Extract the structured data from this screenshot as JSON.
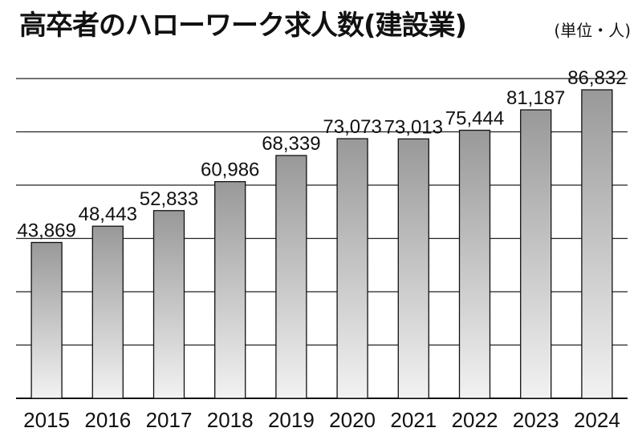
{
  "chart_data": {
    "type": "bar",
    "title": "高卒者のハローワーク求人数(建設業)",
    "unit_label": "(単位・人)",
    "categories": [
      "2015",
      "2016",
      "2017",
      "2018",
      "2019",
      "2020",
      "2021",
      "2022",
      "2023",
      "2024"
    ],
    "values": [
      43869,
      48443,
      52833,
      60986,
      68339,
      73073,
      73013,
      75444,
      81187,
      86832
    ],
    "value_labels": [
      "43,869",
      "48,443",
      "52,833",
      "60,986",
      "68,339",
      "73,073",
      "73,013",
      "75,444",
      "81,187",
      "86,832"
    ],
    "ylim": [
      0,
      90000
    ],
    "grid": true,
    "bar_gradient": [
      "#999999",
      "#f2f2f2"
    ]
  }
}
